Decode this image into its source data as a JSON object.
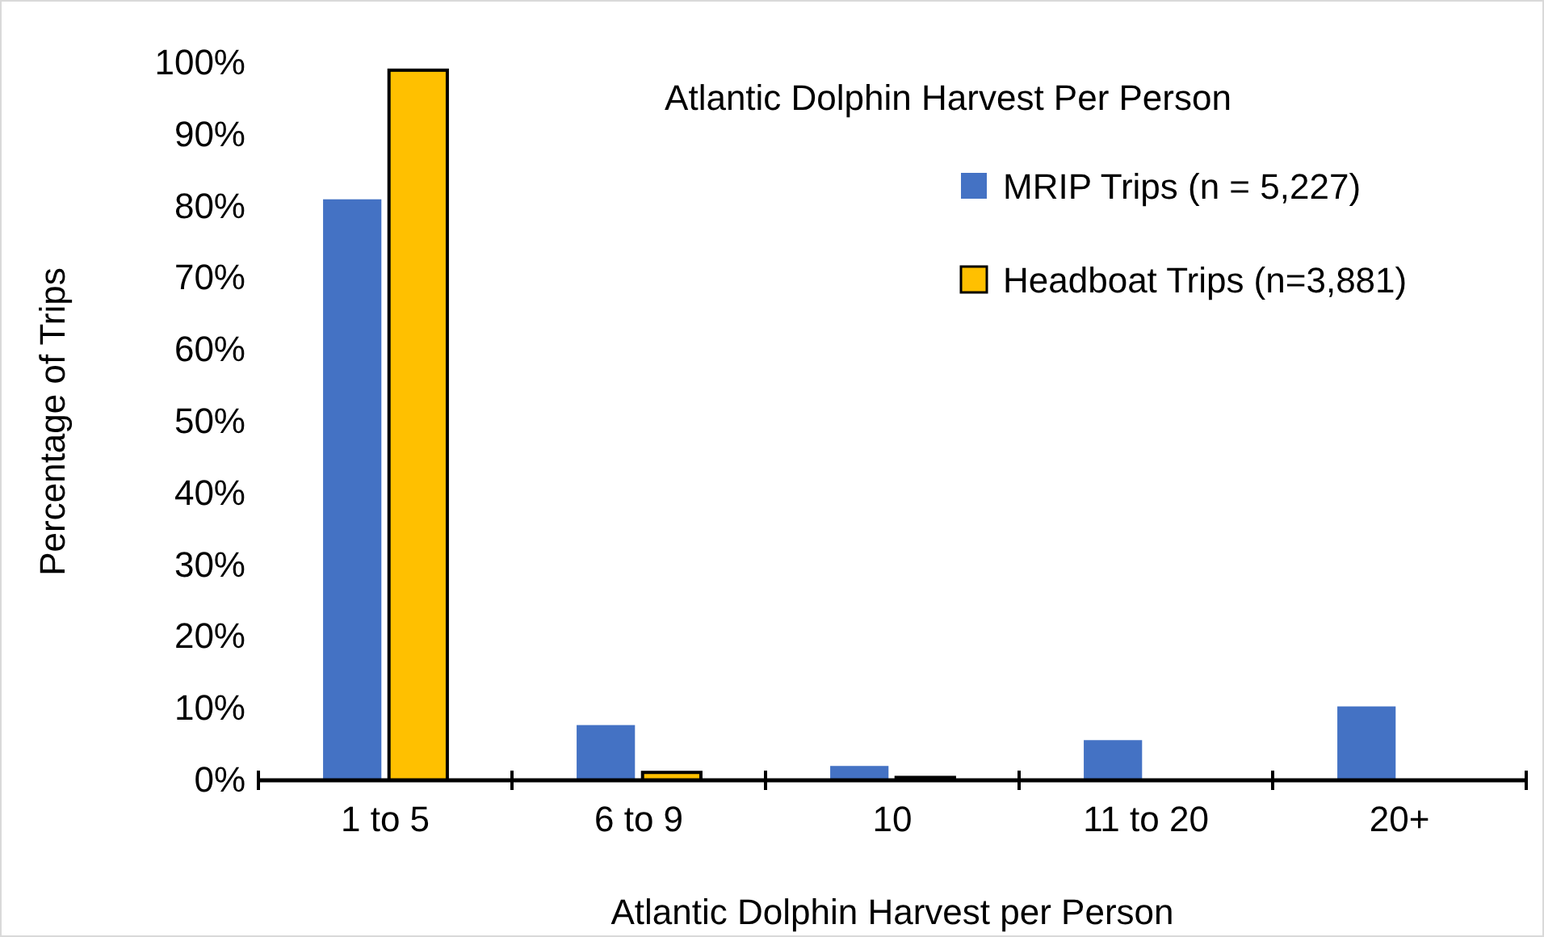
{
  "chart_data": {
    "type": "bar",
    "title": "Atlantic Dolphin Harvest Per Person",
    "xlabel": "Atlantic Dolphin Harvest per Person",
    "ylabel": "Percentage of Trips",
    "categories": [
      "1 to 5",
      "6 to 9",
      "10",
      "11 to 20",
      "20+"
    ],
    "series": [
      {
        "name": "MRIP Trips (n = 5,227)",
        "color": "#4472c4",
        "values": [
          81,
          7.7,
          2.0,
          5.6,
          10.3
        ]
      },
      {
        "name": "Headboat Trips (n=3,881)",
        "color": "#ffc000",
        "values": [
          99,
          1.1,
          0.4,
          null,
          null
        ]
      }
    ],
    "ylim": [
      0,
      100
    ],
    "yticks": [
      {
        "value": 0,
        "label": "0%"
      },
      {
        "value": 10,
        "label": "10%"
      },
      {
        "value": 20,
        "label": "20%"
      },
      {
        "value": 30,
        "label": "30%"
      },
      {
        "value": 40,
        "label": "40%"
      },
      {
        "value": 50,
        "label": "50%"
      },
      {
        "value": 60,
        "label": "60%"
      },
      {
        "value": 70,
        "label": "70%"
      },
      {
        "value": 80,
        "label": "80%"
      },
      {
        "value": 90,
        "label": "90%"
      },
      {
        "value": 100,
        "label": "100%"
      }
    ],
    "grid": false,
    "legend": "top right"
  }
}
